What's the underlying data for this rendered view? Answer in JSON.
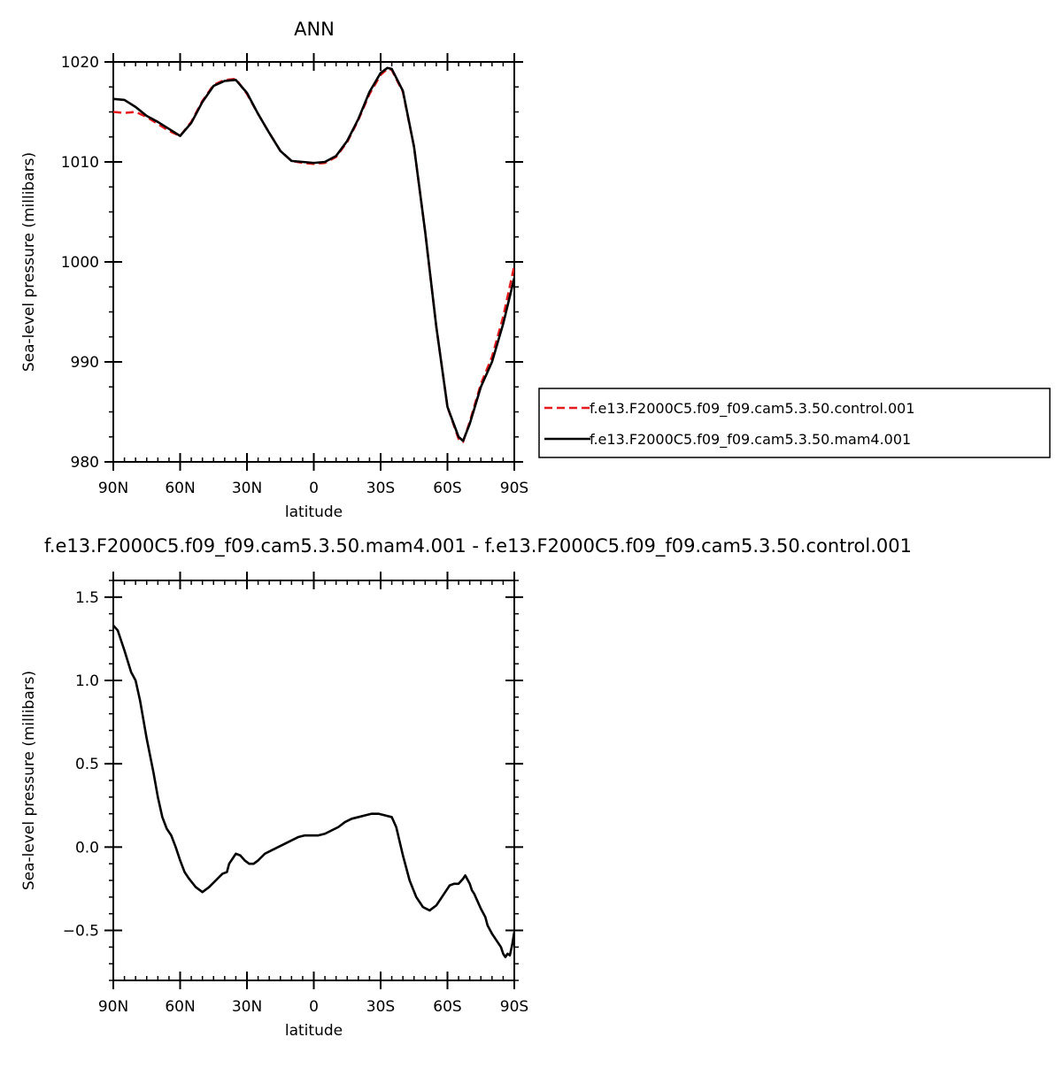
{
  "colors": {
    "control": "#e41a1c",
    "mam4": "#000000"
  },
  "chart_data": [
    {
      "type": "line",
      "title": "ANN",
      "xlabel": "latitude",
      "ylabel": "Sea-level pressure (millibars)",
      "xlim": [
        90,
        -90
      ],
      "ylim": [
        980,
        1020
      ],
      "xticks": [
        {
          "value": 90,
          "label": "90N"
        },
        {
          "value": 60,
          "label": "60N"
        },
        {
          "value": 30,
          "label": "30N"
        },
        {
          "value": 0,
          "label": "0"
        },
        {
          "value": -30,
          "label": "30S"
        },
        {
          "value": -60,
          "label": "60S"
        },
        {
          "value": -90,
          "label": "90S"
        }
      ],
      "yticks": [
        {
          "value": 980,
          "label": "980"
        },
        {
          "value": 990,
          "label": "990"
        },
        {
          "value": 1000,
          "label": "1000"
        },
        {
          "value": 1010,
          "label": "1010"
        },
        {
          "value": 1020,
          "label": "1020"
        }
      ],
      "legend_position": "right",
      "series": [
        {
          "name": "f.e13.F2000C5.f09_f09.cam5.3.50.control.001",
          "style": "dashed",
          "color": "#e41a1c",
          "x": [
            90,
            85,
            80,
            75,
            70,
            65,
            60,
            55,
            50,
            45,
            40,
            35,
            30,
            25,
            20,
            15,
            10,
            5,
            0,
            -5,
            -10,
            -15,
            -20,
            -25,
            -30,
            -33,
            -35,
            -40,
            -45,
            -50,
            -55,
            -60,
            -65,
            -67,
            -70,
            -75,
            -80,
            -85,
            -90
          ],
          "y": [
            1015.0,
            1014.9,
            1015.0,
            1014.5,
            1013.8,
            1013.1,
            1012.6,
            1014.0,
            1016.1,
            1017.7,
            1018.2,
            1018.3,
            1016.8,
            1014.8,
            1012.9,
            1011.1,
            1010.1,
            1009.9,
            1009.8,
            1009.9,
            1010.5,
            1012.0,
            1014.2,
            1016.8,
            1018.7,
            1019.3,
            1019.2,
            1017.0,
            1011.5,
            1003.0,
            993.5,
            985.5,
            982.3,
            982.0,
            984.0,
            987.8,
            990.5,
            994.5,
            999.6
          ]
        },
        {
          "name": "f.e13.F2000C5.f09_f09.cam5.3.50.mam4.001",
          "style": "solid",
          "color": "#000000",
          "x": [
            90,
            85,
            80,
            75,
            70,
            65,
            60,
            55,
            50,
            45,
            40,
            35,
            30,
            25,
            20,
            15,
            10,
            5,
            0,
            -5,
            -10,
            -15,
            -20,
            -25,
            -30,
            -33,
            -35,
            -40,
            -45,
            -50,
            -55,
            -60,
            -65,
            -67,
            -70,
            -75,
            -80,
            -85,
            -90
          ],
          "y": [
            1016.3,
            1016.2,
            1015.5,
            1014.6,
            1014.0,
            1013.3,
            1012.6,
            1013.9,
            1016.0,
            1017.6,
            1018.1,
            1018.2,
            1016.9,
            1014.8,
            1012.9,
            1011.1,
            1010.1,
            1010.0,
            1009.9,
            1010.0,
            1010.6,
            1012.1,
            1014.3,
            1017.0,
            1018.9,
            1019.4,
            1019.3,
            1017.1,
            1011.5,
            1003.0,
            993.5,
            985.5,
            982.5,
            982.1,
            983.8,
            987.5,
            990.0,
            993.8,
            998.4
          ]
        }
      ]
    },
    {
      "type": "line",
      "title": "f.e13.F2000C5.f09_f09.cam5.3.50.mam4.001 - f.e13.F2000C5.f09_f09.cam5.3.50.control.001",
      "xlabel": "latitude",
      "ylabel": "Sea-level pressure (millibars)",
      "xlim": [
        90,
        -90
      ],
      "ylim": [
        -0.8,
        1.6
      ],
      "xticks": [
        {
          "value": 90,
          "label": "90N"
        },
        {
          "value": 60,
          "label": "60N"
        },
        {
          "value": 30,
          "label": "30N"
        },
        {
          "value": 0,
          "label": "0"
        },
        {
          "value": -30,
          "label": "30S"
        },
        {
          "value": -60,
          "label": "60S"
        },
        {
          "value": -90,
          "label": "90S"
        }
      ],
      "yticks": [
        {
          "value": -0.5,
          "label": "−0.5"
        },
        {
          "value": 0.0,
          "label": "0.0"
        },
        {
          "value": 0.5,
          "label": "0.5"
        },
        {
          "value": 1.0,
          "label": "1.0"
        },
        {
          "value": 1.5,
          "label": "1.5"
        }
      ],
      "series": [
        {
          "name": "",
          "style": "solid",
          "color": "#000000",
          "x": [
            90,
            88,
            85,
            82,
            80,
            78,
            75,
            72,
            70,
            68,
            66,
            64,
            62,
            60,
            58,
            56,
            53,
            50,
            47,
            44,
            41,
            39,
            38,
            36,
            35,
            33,
            31,
            29,
            27,
            25,
            22,
            19,
            16,
            13,
            10,
            7,
            4,
            1,
            -2,
            -5,
            -8,
            -11,
            -14,
            -17,
            -20,
            -23,
            -26,
            -29,
            -32,
            -35,
            -37,
            -40,
            -43,
            -46,
            -49,
            -52,
            -55,
            -58,
            -61,
            -63,
            -65,
            -67,
            -68,
            -70,
            -71,
            -72,
            -73,
            -75,
            -77,
            -78,
            -80,
            -82,
            -84,
            -85,
            -86,
            -87,
            -88,
            -89,
            -90
          ],
          "y": [
            1.33,
            1.3,
            1.18,
            1.05,
            1.0,
            0.88,
            0.65,
            0.45,
            0.3,
            0.18,
            0.11,
            0.07,
            0.0,
            -0.08,
            -0.15,
            -0.19,
            -0.24,
            -0.27,
            -0.24,
            -0.2,
            -0.16,
            -0.15,
            -0.1,
            -0.06,
            -0.04,
            -0.05,
            -0.08,
            -0.1,
            -0.1,
            -0.08,
            -0.04,
            -0.02,
            0.0,
            0.02,
            0.04,
            0.06,
            0.07,
            0.07,
            0.07,
            0.08,
            0.1,
            0.12,
            0.15,
            0.17,
            0.18,
            0.19,
            0.2,
            0.2,
            0.19,
            0.18,
            0.12,
            -0.05,
            -0.2,
            -0.3,
            -0.36,
            -0.38,
            -0.35,
            -0.29,
            -0.23,
            -0.22,
            -0.22,
            -0.19,
            -0.17,
            -0.22,
            -0.26,
            -0.28,
            -0.31,
            -0.37,
            -0.42,
            -0.47,
            -0.52,
            -0.56,
            -0.6,
            -0.64,
            -0.66,
            -0.64,
            -0.65,
            -0.59,
            -0.51
          ]
        }
      ]
    }
  ]
}
